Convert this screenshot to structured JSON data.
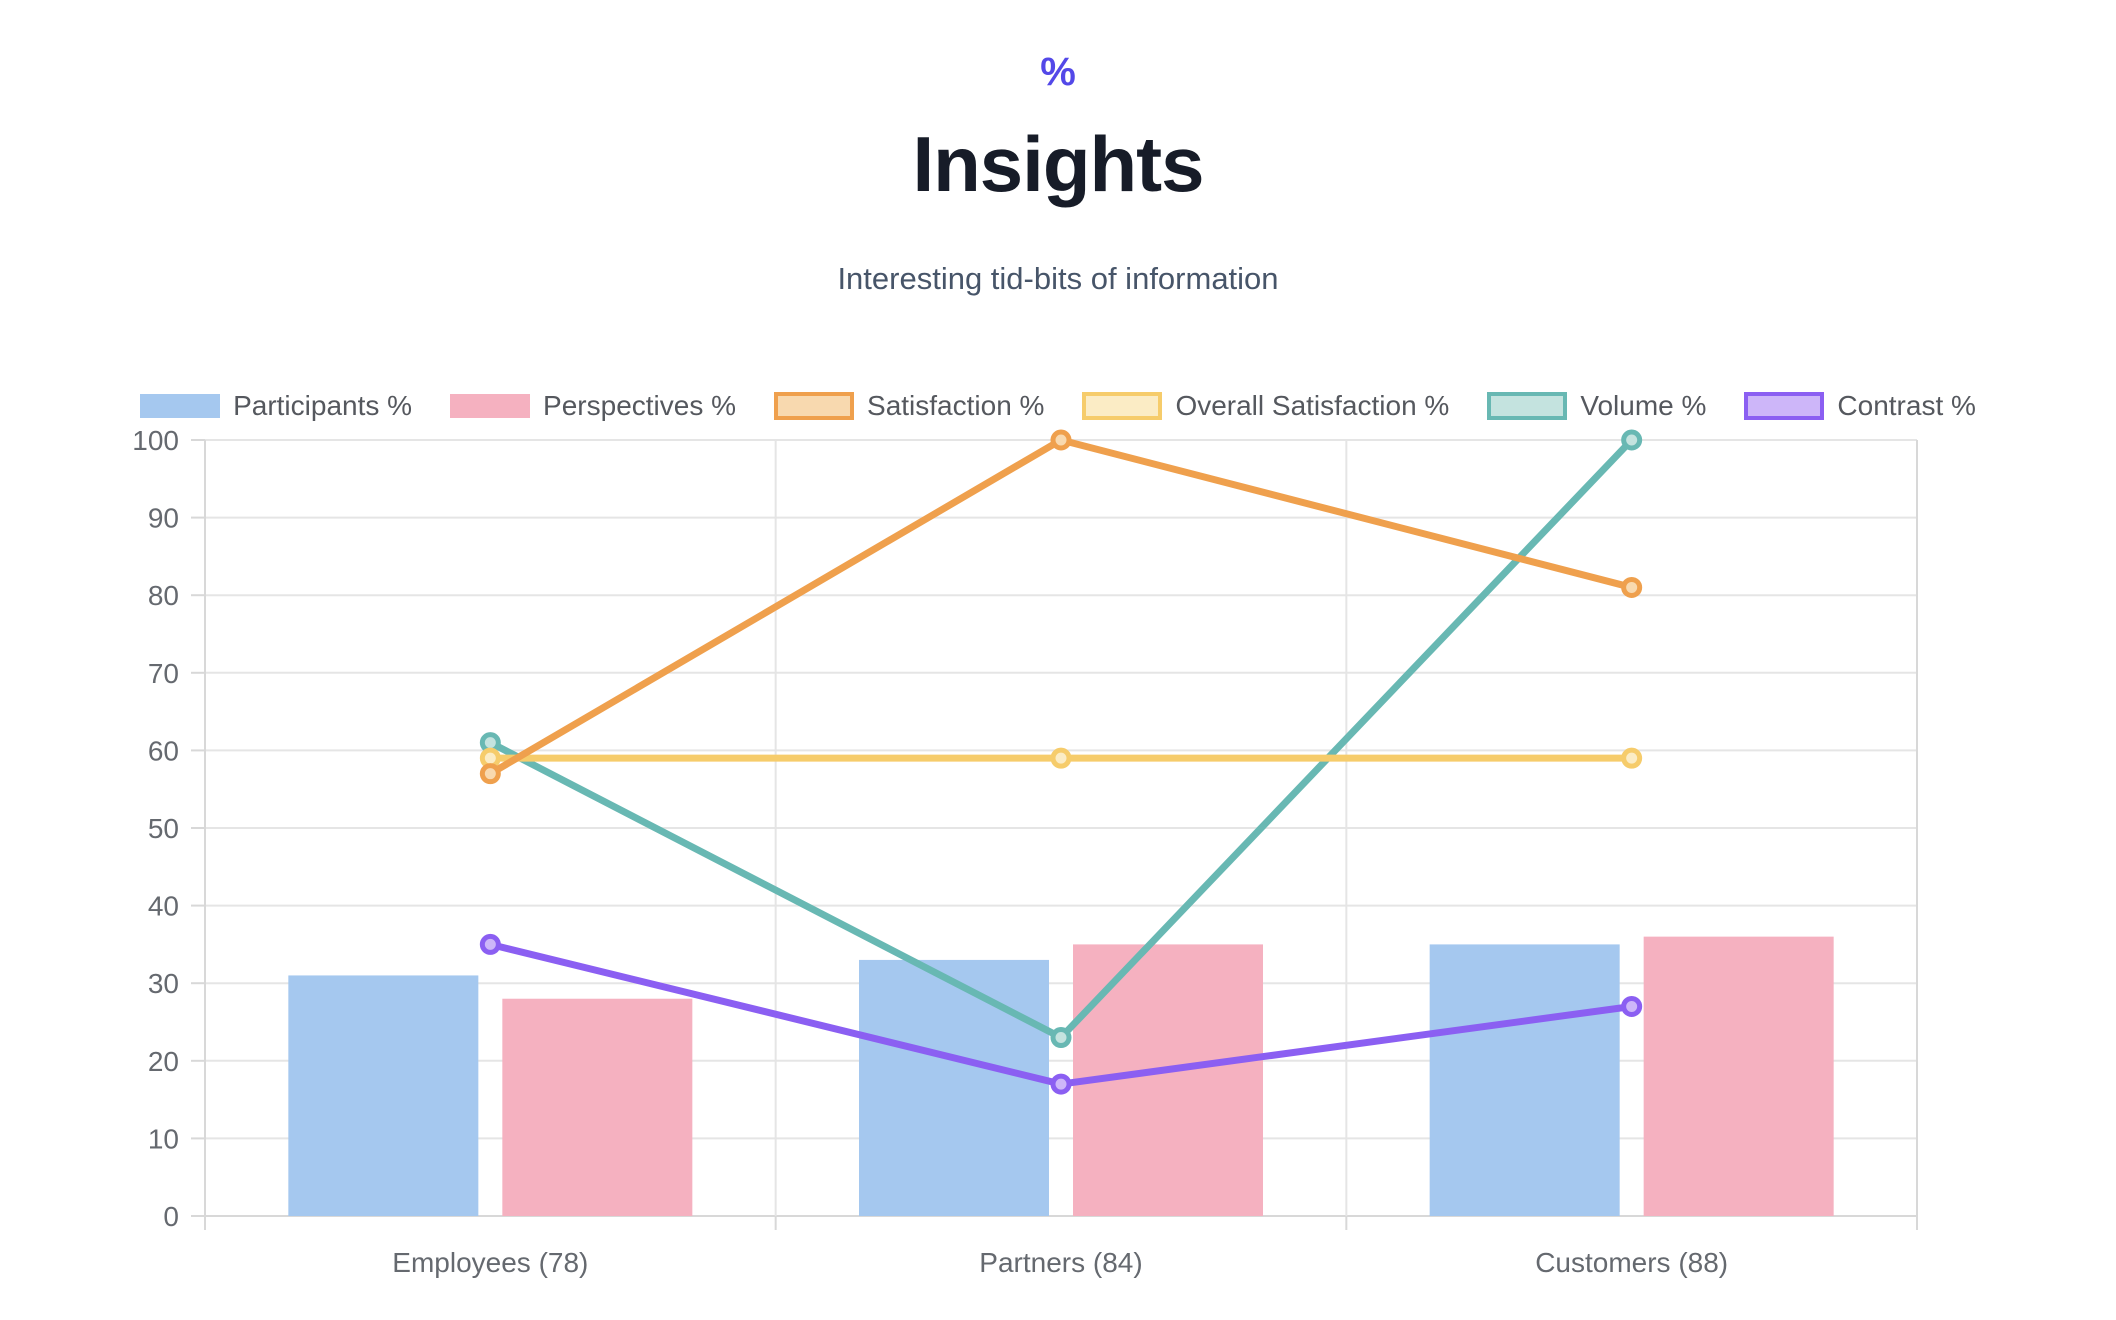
{
  "header": {
    "icon_glyph": "%",
    "icon_color": "#5348e8",
    "title": "Insights",
    "title_color": "#171c28",
    "subtitle": "Interesting tid-bits of information",
    "subtitle_color": "#475569"
  },
  "chart_data": {
    "type": "bar+line",
    "title": "Insights",
    "categories": [
      "Employees (78)",
      "Partners (84)",
      "Customers (88)"
    ],
    "ylim": [
      0,
      100
    ],
    "y_tick_step": 10,
    "y_tick_labels": [
      "0",
      "10",
      "20",
      "30",
      "40",
      "50",
      "60",
      "70",
      "80",
      "90",
      "100"
    ],
    "grid": true,
    "legend_position": "top",
    "axis_text_color": "#65696f",
    "series": [
      {
        "name": "Participants %",
        "type": "bar",
        "values": [
          31,
          33,
          35
        ],
        "color": "#a5c8ef",
        "fill": "#a5c8ef"
      },
      {
        "name": "Perspectives %",
        "type": "bar",
        "values": [
          28,
          35,
          36
        ],
        "color": "#f5b1c0",
        "fill": "#f5b1c0"
      },
      {
        "name": "Satisfaction %",
        "type": "line",
        "values": [
          57,
          100,
          81
        ],
        "color": "#efa04d",
        "fill": "#f8d9af"
      },
      {
        "name": "Overall Satisfaction %",
        "type": "line",
        "values": [
          59,
          59,
          59
        ],
        "color": "#f6cc6b",
        "fill": "#fbecc5"
      },
      {
        "name": "Volume %",
        "type": "line",
        "values": [
          61,
          23,
          100
        ],
        "color": "#68b8b3",
        "fill": "#c4e3df"
      },
      {
        "name": "Contrast %",
        "type": "line",
        "values": [
          35,
          17,
          27
        ],
        "color": "#8b5ff2",
        "fill": "#cdb6f9"
      }
    ]
  }
}
